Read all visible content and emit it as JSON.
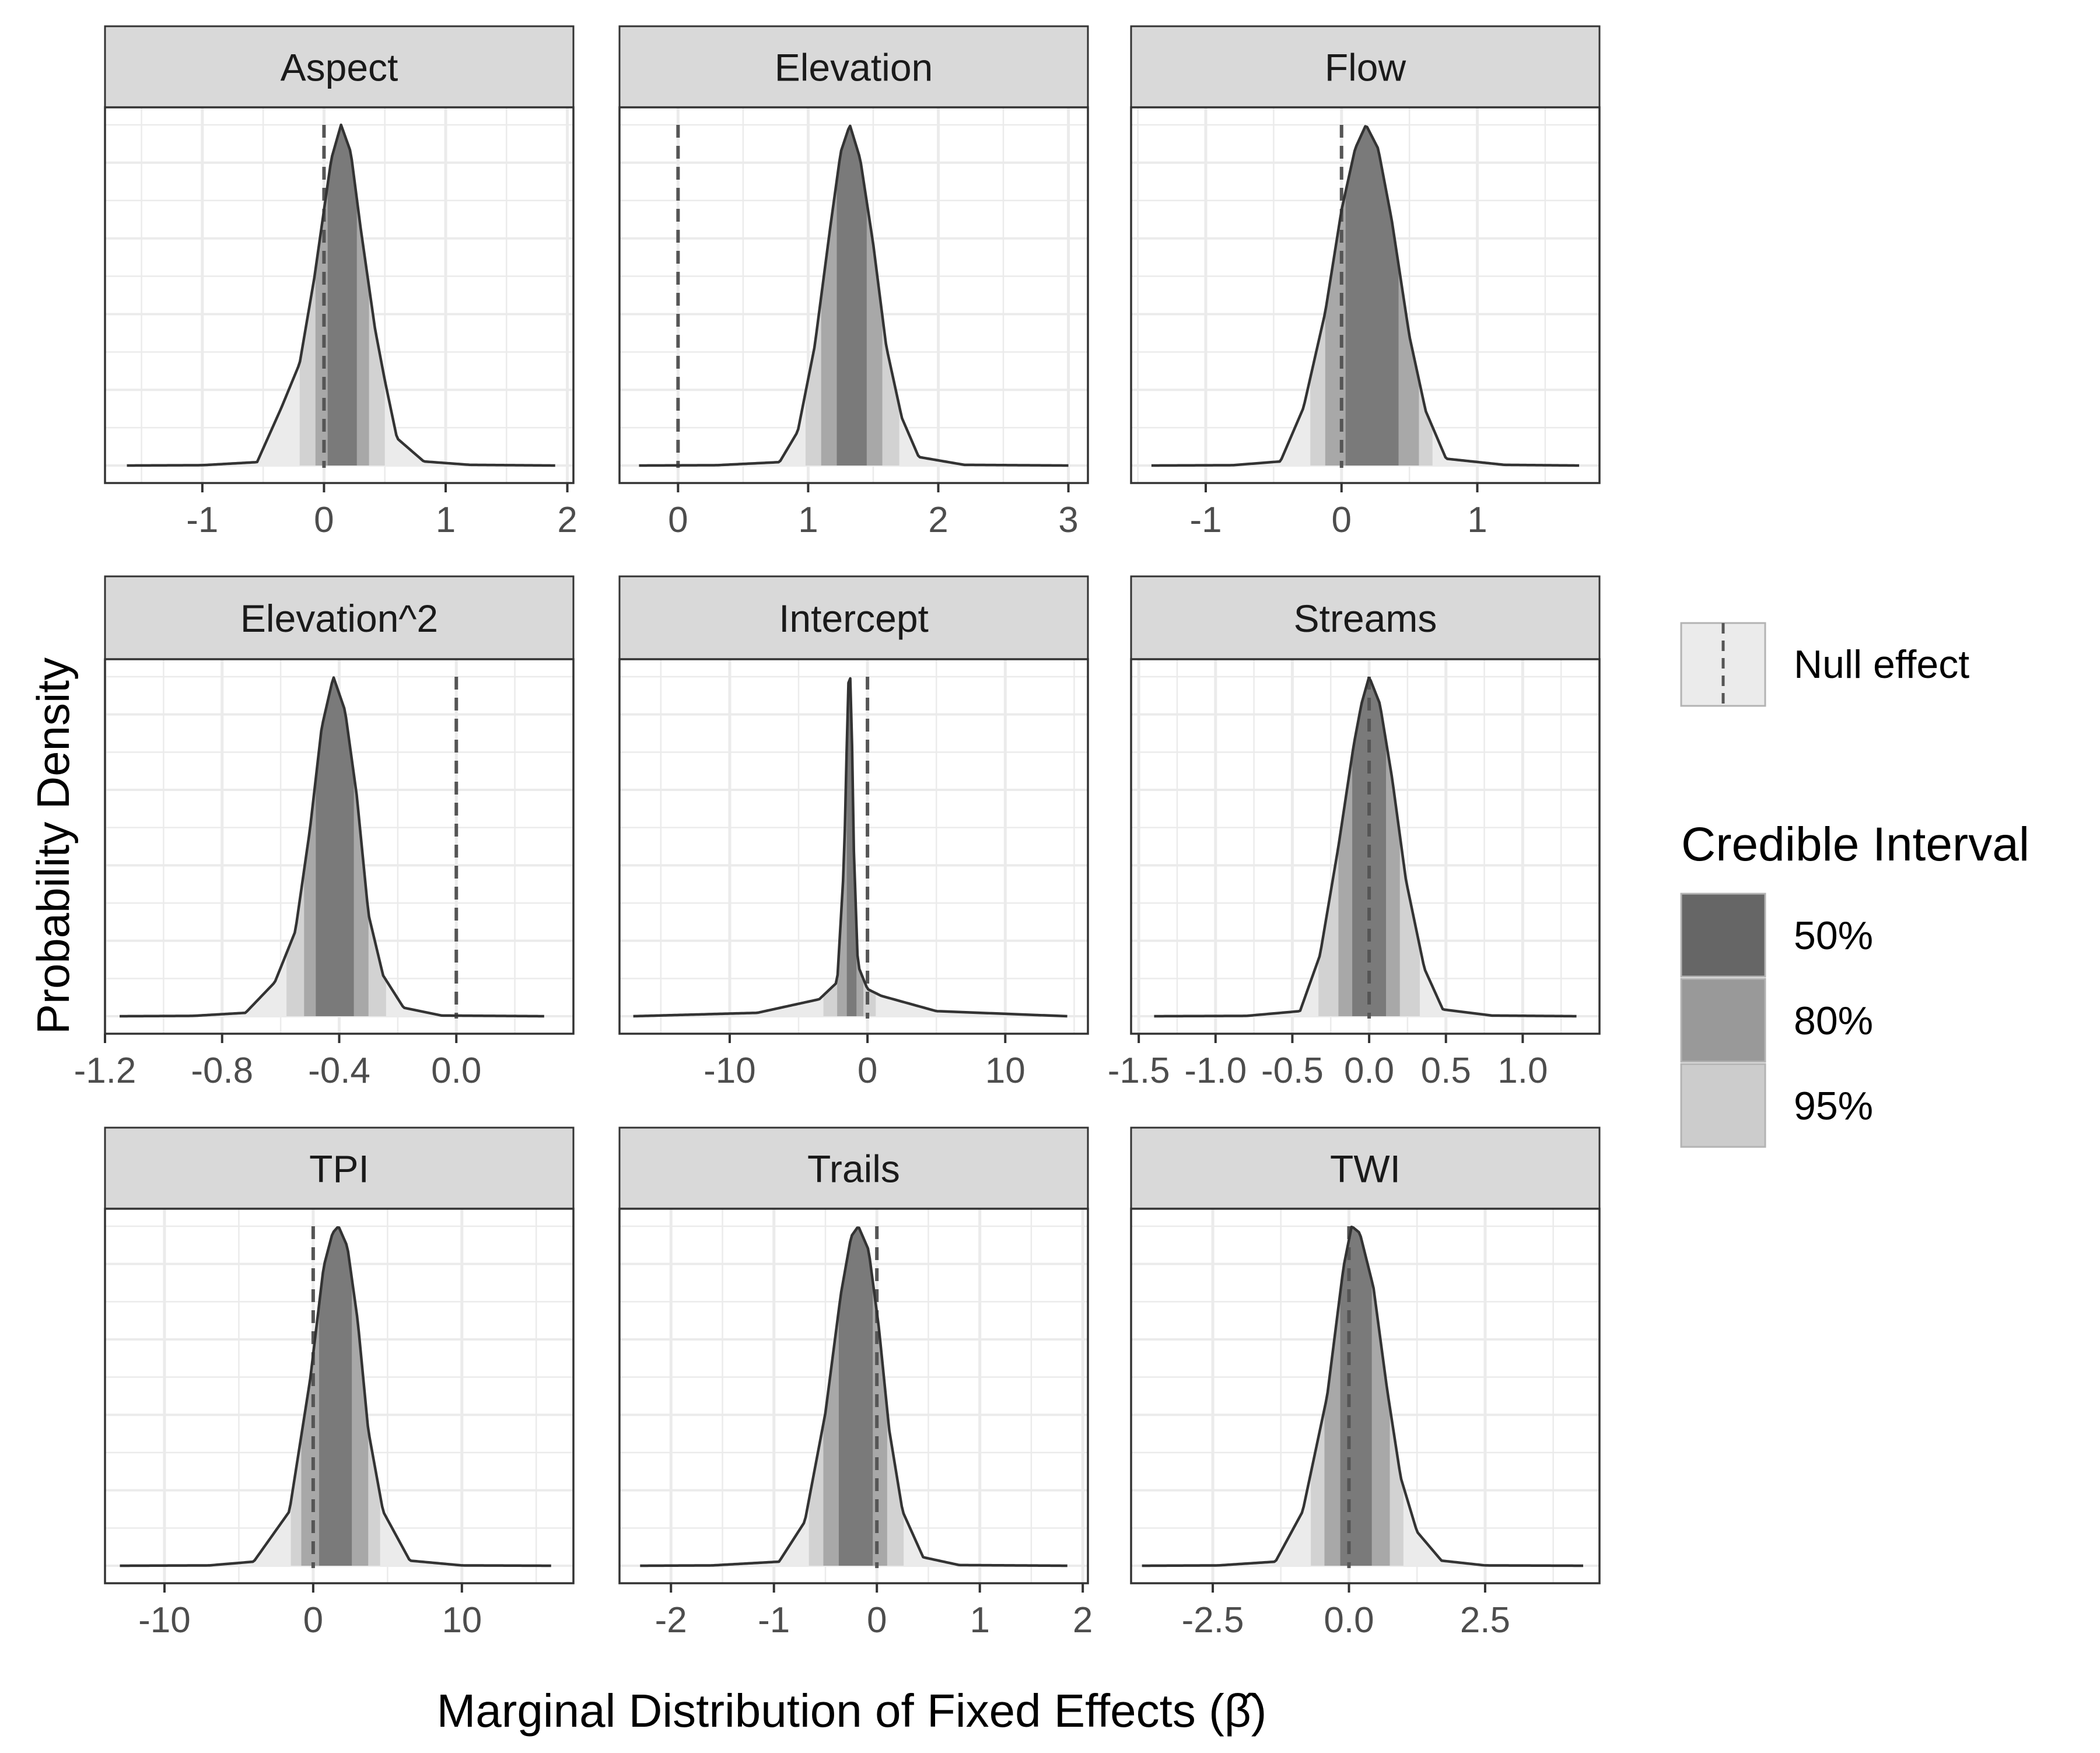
{
  "chart_data": {
    "type": "area",
    "xlabel": "Marginal Distribution of Fixed Effects (β̂)",
    "ylabel": "Probability Density",
    "legend": {
      "placement": "right",
      "null_label": "Null effect",
      "title": "Credible Interval",
      "items": [
        {
          "label": "50%",
          "color": "#666666"
        },
        {
          "label": "80%",
          "color": "#999999"
        },
        {
          "label": "95%",
          "color": "#cccccc"
        }
      ]
    },
    "colors": {
      "tail": "#ebebeb",
      "ci50": "#7a7a7a",
      "ci80": "#a8a8a8",
      "ci95": "#d2d2d2",
      "strip": "#d9d9d9",
      "grid": "#ebebeb",
      "curve": "#333333",
      "null_line": "#555555"
    },
    "panels": [
      {
        "title": "Aspect",
        "xlim": [
          -1.8,
          2.05
        ],
        "ticks": [
          {
            "v": -1,
            "label": "-1"
          },
          {
            "v": 0,
            "label": "0"
          },
          {
            "v": 1,
            "label": "1"
          },
          {
            "v": 2,
            "label": "2"
          }
        ],
        "minor": [
          -1.5,
          -0.5,
          0.5,
          1.5
        ],
        "ci": [
          [
            0.03,
            0.27
          ],
          [
            -0.07,
            0.37
          ],
          [
            -0.2,
            0.5
          ]
        ],
        "density": [
          [
            -1.62,
            0.0
          ],
          [
            -1.0,
            0.001
          ],
          [
            -0.55,
            0.01
          ],
          [
            -0.35,
            0.17
          ],
          [
            -0.2,
            0.3
          ],
          [
            -0.08,
            0.55
          ],
          [
            0.0,
            0.75
          ],
          [
            0.06,
            0.9
          ],
          [
            0.14,
            1.0
          ],
          [
            0.22,
            0.92
          ],
          [
            0.3,
            0.7
          ],
          [
            0.42,
            0.4
          ],
          [
            0.5,
            0.25
          ],
          [
            0.6,
            0.08
          ],
          [
            0.82,
            0.012
          ],
          [
            1.2,
            0.002
          ],
          [
            1.9,
            0.0
          ]
        ]
      },
      {
        "title": "Elevation",
        "xlim": [
          -0.45,
          3.15
        ],
        "ticks": [
          {
            "v": 0,
            "label": "0"
          },
          {
            "v": 1,
            "label": "1"
          },
          {
            "v": 2,
            "label": "2"
          },
          {
            "v": 3,
            "label": "3"
          }
        ],
        "minor": [
          -0.5,
          0.5,
          1.5,
          2.5
        ],
        "ci": [
          [
            1.22,
            1.45
          ],
          [
            1.1,
            1.57
          ],
          [
            0.98,
            1.7
          ]
        ],
        "density": [
          [
            -0.3,
            0.0
          ],
          [
            0.3,
            0.001
          ],
          [
            0.78,
            0.01
          ],
          [
            0.92,
            0.1
          ],
          [
            1.05,
            0.35
          ],
          [
            1.17,
            0.7
          ],
          [
            1.25,
            0.92
          ],
          [
            1.32,
            1.0
          ],
          [
            1.4,
            0.9
          ],
          [
            1.5,
            0.65
          ],
          [
            1.6,
            0.35
          ],
          [
            1.72,
            0.14
          ],
          [
            1.85,
            0.025
          ],
          [
            2.2,
            0.002
          ],
          [
            3.0,
            0.0
          ]
        ]
      },
      {
        "title": "Flow",
        "xlim": [
          -1.55,
          1.9
        ],
        "ticks": [
          {
            "v": -1,
            "label": "-1"
          },
          {
            "v": 0,
            "label": "0"
          },
          {
            "v": 1,
            "label": "1"
          }
        ],
        "minor": [
          -1.5,
          -0.5,
          0.5,
          1.5
        ],
        "ci": [
          [
            0.03,
            0.42
          ],
          [
            -0.12,
            0.57
          ],
          [
            -0.23,
            0.67
          ]
        ],
        "density": [
          [
            -1.4,
            0.0
          ],
          [
            -0.8,
            0.001
          ],
          [
            -0.45,
            0.012
          ],
          [
            -0.28,
            0.17
          ],
          [
            -0.12,
            0.45
          ],
          [
            0.0,
            0.75
          ],
          [
            0.1,
            0.93
          ],
          [
            0.18,
            1.0
          ],
          [
            0.27,
            0.93
          ],
          [
            0.37,
            0.72
          ],
          [
            0.5,
            0.38
          ],
          [
            0.62,
            0.16
          ],
          [
            0.77,
            0.02
          ],
          [
            1.2,
            0.002
          ],
          [
            1.75,
            0.0
          ]
        ]
      },
      {
        "title": "Elevation^2",
        "xlim": [
          -1.2,
          0.4
        ],
        "ticks": [
          {
            "v": -1.2,
            "label": "-1.2"
          },
          {
            "v": -0.8,
            "label": "-0.8"
          },
          {
            "v": -0.4,
            "label": "-0.4"
          },
          {
            "v": 0.0,
            "label": "0.0"
          }
        ],
        "minor": [
          -1.0,
          -0.6,
          -0.2,
          0.2
        ],
        "ci": [
          [
            -0.48,
            -0.35
          ],
          [
            -0.52,
            -0.3
          ],
          [
            -0.58,
            -0.24
          ]
        ],
        "density": [
          [
            -1.15,
            0.0
          ],
          [
            -0.9,
            0.001
          ],
          [
            -0.72,
            0.01
          ],
          [
            -0.62,
            0.1
          ],
          [
            -0.55,
            0.25
          ],
          [
            -0.5,
            0.55
          ],
          [
            -0.46,
            0.85
          ],
          [
            -0.42,
            1.0
          ],
          [
            -0.38,
            0.9
          ],
          [
            -0.34,
            0.65
          ],
          [
            -0.3,
            0.3
          ],
          [
            -0.25,
            0.12
          ],
          [
            -0.18,
            0.025
          ],
          [
            -0.05,
            0.002
          ],
          [
            0.3,
            0.0
          ]
        ]
      },
      {
        "title": "Intercept",
        "xlim": [
          -18,
          16
        ],
        "ticks": [
          {
            "v": -10,
            "label": "-10"
          },
          {
            "v": 0,
            "label": "0"
          },
          {
            "v": 10,
            "label": "10"
          }
        ],
        "minor": [
          -15,
          -5,
          5,
          15
        ],
        "ci": [
          [
            -1.5,
            -0.8
          ],
          [
            -2.2,
            -0.3
          ],
          [
            -3.2,
            0.6
          ]
        ],
        "density": [
          [
            -17,
            0.0
          ],
          [
            -8,
            0.01
          ],
          [
            -3.5,
            0.05
          ],
          [
            -2.2,
            0.1
          ],
          [
            -1.7,
            0.45
          ],
          [
            -1.4,
            0.98
          ],
          [
            -1.2,
            1.0
          ],
          [
            -1.0,
            0.5
          ],
          [
            -0.7,
            0.15
          ],
          [
            0.0,
            0.08
          ],
          [
            1.0,
            0.06
          ],
          [
            5,
            0.015
          ],
          [
            14.5,
            0.0
          ]
        ]
      },
      {
        "title": "Streams",
        "xlim": [
          -1.55,
          1.5
        ],
        "ticks": [
          {
            "v": -1.5,
            "label": "-1.5"
          },
          {
            "v": -1.0,
            "label": "-1.0"
          },
          {
            "v": -0.5,
            "label": "-0.5"
          },
          {
            "v": 0.0,
            "label": "0.0"
          },
          {
            "v": 0.5,
            "label": "0.5"
          },
          {
            "v": 1.0,
            "label": "1.0"
          }
        ],
        "minor": [
          -1.25,
          -0.75,
          -0.25,
          0.25,
          0.75,
          1.25
        ],
        "ci": [
          [
            -0.11,
            0.11
          ],
          [
            -0.2,
            0.2
          ],
          [
            -0.33,
            0.33
          ]
        ],
        "density": [
          [
            -1.4,
            0.0
          ],
          [
            -0.8,
            0.001
          ],
          [
            -0.45,
            0.015
          ],
          [
            -0.32,
            0.18
          ],
          [
            -0.2,
            0.5
          ],
          [
            -0.1,
            0.8
          ],
          [
            -0.05,
            0.92
          ],
          [
            0.0,
            1.0
          ],
          [
            0.07,
            0.92
          ],
          [
            0.15,
            0.7
          ],
          [
            0.24,
            0.4
          ],
          [
            0.36,
            0.14
          ],
          [
            0.48,
            0.02
          ],
          [
            0.8,
            0.002
          ],
          [
            1.35,
            0.0
          ]
        ]
      },
      {
        "title": "TPI",
        "xlim": [
          -14,
          17.5
        ],
        "ticks": [
          {
            "v": -10,
            "label": "-10"
          },
          {
            "v": 0,
            "label": "0"
          },
          {
            "v": 10,
            "label": "10"
          }
        ],
        "minor": [
          -5,
          5,
          15
        ],
        "ci": [
          [
            0.4,
            2.6
          ],
          [
            -0.8,
            3.7
          ],
          [
            -1.5,
            4.5
          ]
        ],
        "density": [
          [
            -13,
            0.0
          ],
          [
            -7,
            0.001
          ],
          [
            -4,
            0.012
          ],
          [
            -1.6,
            0.16
          ],
          [
            -0.2,
            0.55
          ],
          [
            0.7,
            0.88
          ],
          [
            1.3,
            0.98
          ],
          [
            1.7,
            1.0
          ],
          [
            2.3,
            0.94
          ],
          [
            3.0,
            0.72
          ],
          [
            3.7,
            0.4
          ],
          [
            4.7,
            0.16
          ],
          [
            6.5,
            0.015
          ],
          [
            10,
            0.001
          ],
          [
            16,
            0.0
          ]
        ]
      },
      {
        "title": "Trails",
        "xlim": [
          -2.5,
          2.05
        ],
        "ticks": [
          {
            "v": -2,
            "label": "-2"
          },
          {
            "v": -1,
            "label": "-1"
          },
          {
            "v": 0,
            "label": "0"
          },
          {
            "v": 1,
            "label": "1"
          },
          {
            "v": 2,
            "label": "2"
          }
        ],
        "minor": [
          -1.5,
          -0.5,
          0.5,
          1.5
        ],
        "ci": [
          [
            -0.37,
            -0.04
          ],
          [
            -0.52,
            0.1
          ],
          [
            -0.66,
            0.26
          ]
        ],
        "density": [
          [
            -2.3,
            0.0
          ],
          [
            -1.6,
            0.001
          ],
          [
            -0.95,
            0.012
          ],
          [
            -0.7,
            0.13
          ],
          [
            -0.5,
            0.45
          ],
          [
            -0.35,
            0.8
          ],
          [
            -0.25,
            0.97
          ],
          [
            -0.18,
            1.0
          ],
          [
            -0.08,
            0.93
          ],
          [
            0.02,
            0.7
          ],
          [
            0.12,
            0.4
          ],
          [
            0.25,
            0.16
          ],
          [
            0.45,
            0.025
          ],
          [
            0.8,
            0.002
          ],
          [
            1.85,
            0.0
          ]
        ]
      },
      {
        "title": "TWI",
        "xlim": [
          -4.0,
          4.6
        ],
        "ticks": [
          {
            "v": -2.5,
            "label": "-2.5"
          },
          {
            "v": 0.0,
            "label": "0.0"
          },
          {
            "v": 2.5,
            "label": "2.5"
          }
        ],
        "minor": [
          -1.25,
          1.25,
          3.75
        ],
        "ci": [
          [
            -0.16,
            0.42
          ],
          [
            -0.45,
            0.75
          ],
          [
            -0.7,
            1.0
          ]
        ],
        "density": [
          [
            -3.8,
            0.0
          ],
          [
            -2.4,
            0.001
          ],
          [
            -1.35,
            0.012
          ],
          [
            -0.85,
            0.16
          ],
          [
            -0.4,
            0.5
          ],
          [
            -0.1,
            0.88
          ],
          [
            0.05,
            1.0
          ],
          [
            0.2,
            0.98
          ],
          [
            0.45,
            0.82
          ],
          [
            0.7,
            0.52
          ],
          [
            0.95,
            0.26
          ],
          [
            1.25,
            0.1
          ],
          [
            1.7,
            0.015
          ],
          [
            2.5,
            0.001
          ],
          [
            4.3,
            0.0
          ]
        ]
      }
    ]
  }
}
